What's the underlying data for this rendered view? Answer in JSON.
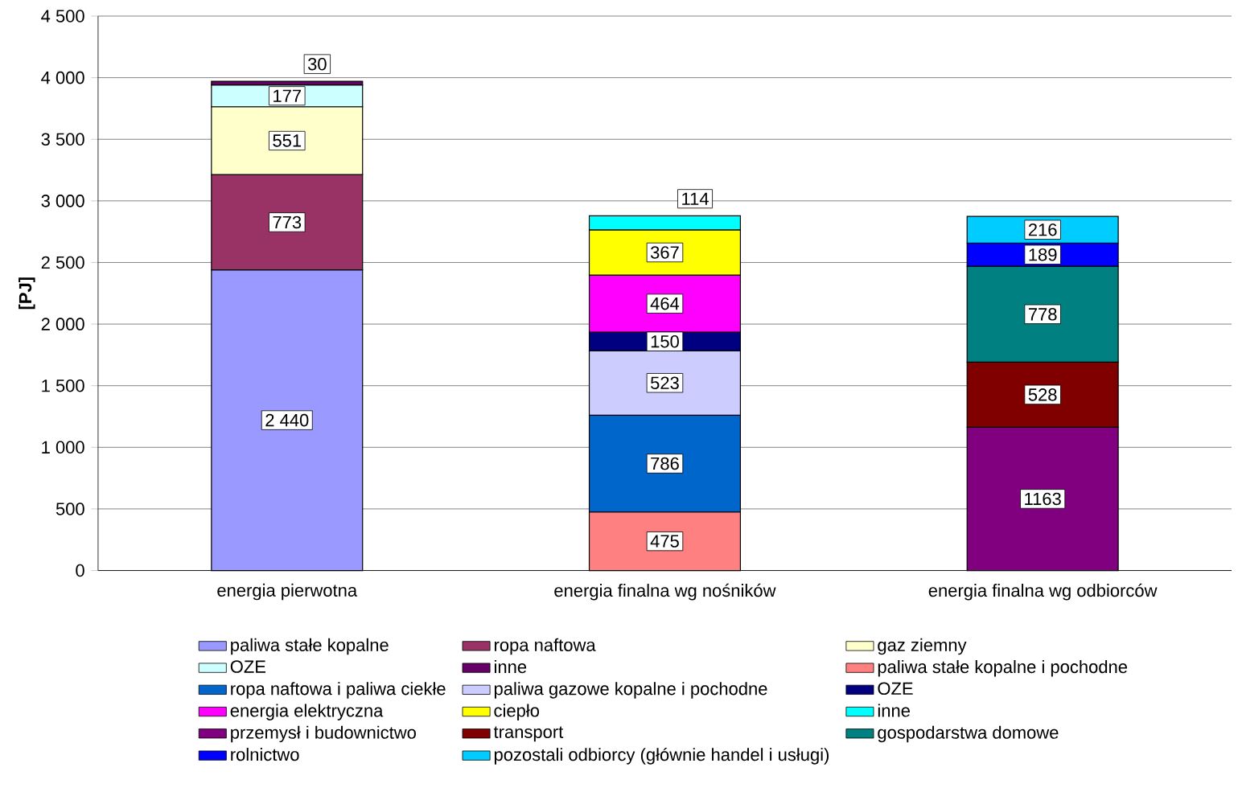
{
  "chart_data": {
    "type": "bar",
    "stacked": true,
    "ylabel": "[PJ]",
    "categories": [
      "energia pierwotna",
      "energia finalna wg nośników",
      "energia finalna wg odbiorców"
    ],
    "ylim": [
      0,
      4500
    ],
    "yticks": [
      {
        "value": 0,
        "label": "0"
      },
      {
        "value": 500,
        "label": "500"
      },
      {
        "value": 1000,
        "label": "1 000"
      },
      {
        "value": 1500,
        "label": "1 500"
      },
      {
        "value": 2000,
        "label": "2 000"
      },
      {
        "value": 2500,
        "label": "2 500"
      },
      {
        "value": 3000,
        "label": "3 000"
      },
      {
        "value": 3500,
        "label": "3 500"
      },
      {
        "value": 4000,
        "label": "4 000"
      },
      {
        "value": 4500,
        "label": "4 500"
      }
    ],
    "grid": "y",
    "legend": "bottom",
    "series": [
      {
        "name": "paliwa stałe kopalne",
        "color": "#9999ff",
        "values": [
          2440,
          null,
          null
        ],
        "value_labels": [
          "2 440",
          null,
          null
        ]
      },
      {
        "name": "ropa naftowa",
        "color": "#993366",
        "values": [
          773,
          null,
          null
        ],
        "value_labels": [
          "773",
          null,
          null
        ]
      },
      {
        "name": "gaz ziemny",
        "color": "#ffffcc",
        "values": [
          551,
          null,
          null
        ],
        "value_labels": [
          "551",
          null,
          null
        ]
      },
      {
        "name": "OZE",
        "color": "#ccffff",
        "values": [
          177,
          null,
          null
        ],
        "value_labels": [
          "177",
          null,
          null
        ]
      },
      {
        "name": "inne",
        "color": "#660066",
        "values": [
          30,
          null,
          null
        ],
        "value_labels": [
          "30",
          null,
          null
        ]
      },
      {
        "name": "paliwa stałe kopalne i pochodne",
        "color": "#ff8080",
        "values": [
          null,
          475,
          null
        ],
        "value_labels": [
          null,
          "475",
          null
        ]
      },
      {
        "name": "ropa naftowa i paliwa ciekłe",
        "color": "#0066cc",
        "values": [
          null,
          786,
          null
        ],
        "value_labels": [
          null,
          "786",
          null
        ]
      },
      {
        "name": "paliwa gazowe kopalne i pochodne",
        "color": "#ccccff",
        "values": [
          null,
          523,
          null
        ],
        "value_labels": [
          null,
          "523",
          null
        ]
      },
      {
        "name": "OZE",
        "color": "#000080",
        "values": [
          null,
          150,
          null
        ],
        "value_labels": [
          null,
          "150",
          null
        ]
      },
      {
        "name": "energia elektryczna",
        "color": "#ff00ff",
        "values": [
          null,
          464,
          null
        ],
        "value_labels": [
          null,
          "464",
          null
        ]
      },
      {
        "name": "ciepło",
        "color": "#ffff00",
        "values": [
          null,
          367,
          null
        ],
        "value_labels": [
          null,
          "367",
          null
        ]
      },
      {
        "name": "inne",
        "color": "#00ffff",
        "values": [
          null,
          114,
          null
        ],
        "value_labels": [
          null,
          "114",
          null
        ]
      },
      {
        "name": "przemysł i budownictwo",
        "color": "#800080",
        "values": [
          null,
          null,
          1163
        ],
        "value_labels": [
          null,
          null,
          "1163"
        ]
      },
      {
        "name": "transport",
        "color": "#800000",
        "values": [
          null,
          null,
          528
        ],
        "value_labels": [
          null,
          null,
          "528"
        ]
      },
      {
        "name": "gospodarstwa domowe",
        "color": "#008080",
        "values": [
          null,
          null,
          778
        ],
        "value_labels": [
          null,
          null,
          "778"
        ]
      },
      {
        "name": "rolnictwo",
        "color": "#0000ff",
        "values": [
          null,
          null,
          189
        ],
        "value_labels": [
          null,
          null,
          "189"
        ]
      },
      {
        "name": "pozostali odbiorcy (głównie handel i usługi)",
        "color": "#00ccff",
        "values": [
          null,
          null,
          216
        ],
        "value_labels": [
          null,
          null,
          "216"
        ]
      }
    ]
  }
}
